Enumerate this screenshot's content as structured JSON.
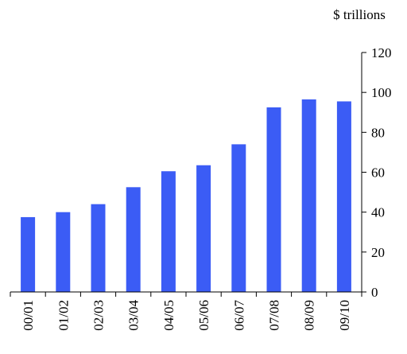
{
  "chart_data": {
    "type": "bar",
    "title": "",
    "xlabel": "",
    "ylabel": "",
    "unit_label": "$ trillions",
    "categories": [
      "00/01",
      "01/02",
      "02/03",
      "03/04",
      "04/05",
      "05/06",
      "06/07",
      "07/08",
      "08/09",
      "09/10"
    ],
    "values": [
      37.5,
      40,
      44,
      52.5,
      60.5,
      63.5,
      74,
      92.5,
      96.5,
      95.5
    ],
    "ylim": [
      0,
      120
    ],
    "yticks": [
      "0",
      "20",
      "40",
      "60",
      "80",
      "100",
      "120"
    ],
    "y_axis_side": "right",
    "grid": false,
    "legend": "none",
    "bar_color": "#3b5cf5"
  }
}
